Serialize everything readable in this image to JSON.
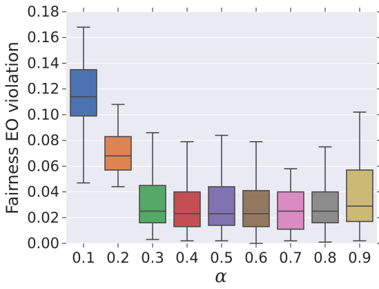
{
  "chart_data": {
    "type": "boxplot",
    "xlabel": "α",
    "ylabel": "Fairness EO violation",
    "ylim": [
      0,
      0.18
    ],
    "yticks": [
      "0.00",
      "0.02",
      "0.04",
      "0.06",
      "0.08",
      "0.10",
      "0.12",
      "0.14",
      "0.16",
      "0.18"
    ],
    "grid": true,
    "categories": [
      "0.1",
      "0.2",
      "0.3",
      "0.4",
      "0.5",
      "0.6",
      "0.7",
      "0.8",
      "0.9"
    ],
    "boxes": [
      {
        "category": "0.1",
        "whisker_low": 0.047,
        "q1": 0.099,
        "median": 0.114,
        "q3": 0.135,
        "whisker_high": 0.168,
        "color": "#4c72b0"
      },
      {
        "category": "0.2",
        "whisker_low": 0.044,
        "q1": 0.057,
        "median": 0.068,
        "q3": 0.083,
        "whisker_high": 0.108,
        "color": "#dd8452"
      },
      {
        "category": "0.3",
        "whisker_low": 0.003,
        "q1": 0.016,
        "median": 0.025,
        "q3": 0.045,
        "whisker_high": 0.086,
        "color": "#55a868"
      },
      {
        "category": "0.4",
        "whisker_low": 0.002,
        "q1": 0.013,
        "median": 0.023,
        "q3": 0.04,
        "whisker_high": 0.079,
        "color": "#c44e52"
      },
      {
        "category": "0.5",
        "whisker_low": 0.002,
        "q1": 0.014,
        "median": 0.023,
        "q3": 0.044,
        "whisker_high": 0.084,
        "color": "#8172b2"
      },
      {
        "category": "0.6",
        "whisker_low": 0.0,
        "q1": 0.013,
        "median": 0.023,
        "q3": 0.041,
        "whisker_high": 0.079,
        "color": "#937860"
      },
      {
        "category": "0.7",
        "whisker_low": 0.002,
        "q1": 0.011,
        "median": 0.025,
        "q3": 0.04,
        "whisker_high": 0.058,
        "color": "#da8bc3"
      },
      {
        "category": "0.8",
        "whisker_low": 0.001,
        "q1": 0.016,
        "median": 0.025,
        "q3": 0.04,
        "whisker_high": 0.075,
        "color": "#8c8c8c"
      },
      {
        "category": "0.9",
        "whisker_low": 0.002,
        "q1": 0.017,
        "median": 0.029,
        "q3": 0.057,
        "whisker_high": 0.102,
        "color": "#ccb974"
      }
    ]
  }
}
